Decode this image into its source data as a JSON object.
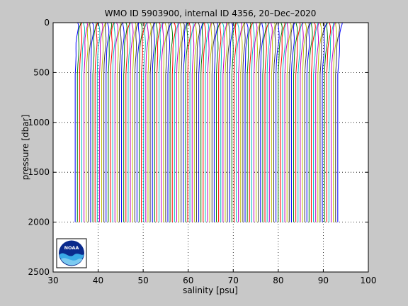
{
  "figure": {
    "background": "#c8c8c8",
    "plot_background": "#ffffff"
  },
  "chart_data": {
    "type": "line",
    "title": "WMO ID 5903900, internal ID 4356, 20–Dec–2020",
    "xlabel": "salinity [psu]",
    "ylabel": "pressure [dbar]",
    "xlim": [
      30,
      100
    ],
    "ylim": [
      0,
      2500
    ],
    "y_reversed": true,
    "grid": true,
    "grid_style": "dotted",
    "xticks": [
      30,
      40,
      50,
      60,
      70,
      80,
      90,
      100
    ],
    "yticks": [
      0,
      500,
      1000,
      1500,
      2000,
      2500
    ],
    "xtick_labels": [
      "30",
      "40",
      "50",
      "60",
      "70",
      "80",
      "90",
      "100"
    ],
    "ytick_labels": [
      "0",
      "500",
      "1000",
      "1500",
      "2000",
      "2500"
    ],
    "profiles": {
      "description_count": 120,
      "first_deep_salinity": 34.9,
      "salinity_step": 0.49,
      "surface_offset": 0.55,
      "max_pressure": 2000,
      "colors": [
        "#0000ff",
        "#008000",
        "#ff0000",
        "#00bfbf",
        "#bf00bf",
        "#bfbf00",
        "#404040"
      ]
    },
    "logo": {
      "name": "noaa-logo-icon",
      "text": "NOAA"
    }
  }
}
